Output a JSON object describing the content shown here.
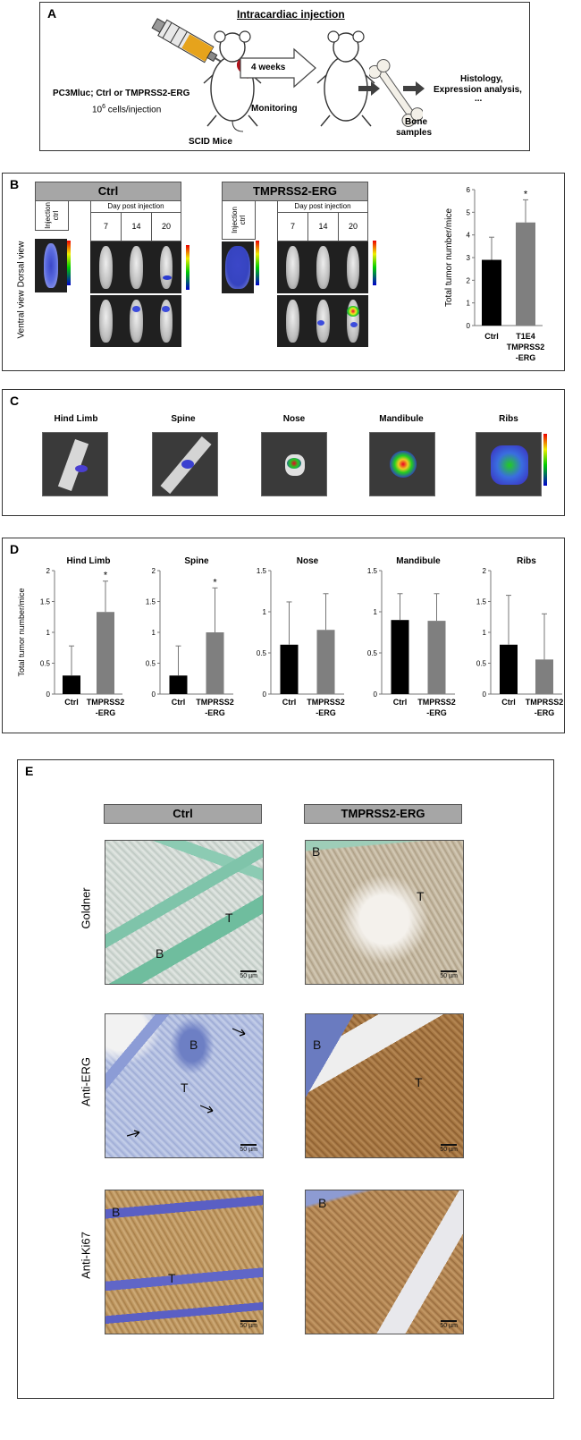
{
  "panelA": {
    "label": "A",
    "title": "Intracardiac injection",
    "cells_line": "PC3Mluc; Ctrl or TMPRSS2-ERG",
    "dose_prefix": "10",
    "dose_sup": "6",
    "dose_suffix": " cells/injection",
    "mice_label": "SCID Mice",
    "weeks_label": "4 weeks",
    "monitoring_label": "Monitoring",
    "bone_label_1": "Bone",
    "bone_label_2": "samples",
    "analysis_1": "Histology,",
    "analysis_2": "Expression analysis,",
    "analysis_3": "..."
  },
  "panelB": {
    "label": "B",
    "ctrl_header": "Ctrl",
    "erg_header": "TMPRSS2-ERG",
    "injection_ctrl": "Injection ctrl",
    "day_post": "Day post injection",
    "days": [
      "7",
      "14",
      "20"
    ],
    "dorsal": "Dorsal view",
    "ventral": "Ventral view"
  },
  "panelC": {
    "label": "C",
    "sites": [
      "Hind Limb",
      "Spine",
      "Nose",
      "Mandibule",
      "Ribs"
    ]
  },
  "panelD": {
    "label": "D"
  },
  "panelE": {
    "label": "E",
    "ctrl_header": "Ctrl",
    "erg_header": "TMPRSS2-ERG",
    "rows": [
      "Goldner",
      "Anti-ERG",
      "Anti-Ki67"
    ],
    "scale": "50 µm",
    "labels": {
      "goldner_ctrl_T": "T",
      "goldner_ctrl_B": "B",
      "goldner_erg_B": "B",
      "goldner_erg_T": "T",
      "erg_ctrl_B": "B",
      "erg_ctrl_T": "T",
      "erg_erg_B": "B",
      "erg_erg_T": "T",
      "ki67_ctrl_B": "B",
      "ki67_ctrl_T": "T",
      "ki67_erg_B": "B"
    }
  },
  "chart_data": [
    {
      "type": "bar",
      "panel": "B",
      "categories": [
        "Ctrl",
        "T1E4 TMPRSS2-ERG"
      ],
      "category_labels": [
        [
          "Ctrl"
        ],
        [
          "T1E4",
          "TMPRSS2",
          "-ERG"
        ]
      ],
      "values": [
        2.9,
        4.55
      ],
      "errors": [
        1.0,
        1.0
      ],
      "significance": [
        "",
        "*"
      ],
      "colors": [
        "#000000",
        "#7f7f7f"
      ],
      "ylabel": "Total tumor number/mice",
      "ylim": [
        0,
        6
      ],
      "yticks": [
        "0",
        "1",
        "2",
        "3",
        "4",
        "5",
        "6"
      ]
    },
    {
      "type": "bar",
      "panel": "D",
      "title": "Hind Limb",
      "categories": [
        "Ctrl",
        "TMPRSS2-ERG"
      ],
      "category_labels": [
        [
          "Ctrl"
        ],
        [
          "TMPRSS2",
          "-ERG"
        ]
      ],
      "values": [
        0.3,
        1.33
      ],
      "errors": [
        0.48,
        0.5
      ],
      "significance": [
        "",
        "*"
      ],
      "colors": [
        "#000000",
        "#7f7f7f"
      ],
      "ylabel": "Total tumor number/mice",
      "ylim": [
        0,
        2
      ],
      "yticks": [
        "0",
        "0.5",
        "1",
        "1.5",
        "2"
      ]
    },
    {
      "type": "bar",
      "panel": "D",
      "title": "Spine",
      "categories": [
        "Ctrl",
        "TMPRSS2-ERG"
      ],
      "category_labels": [
        [
          "Ctrl"
        ],
        [
          "TMPRSS2",
          "-ERG"
        ]
      ],
      "values": [
        0.3,
        1.0
      ],
      "errors": [
        0.48,
        0.72
      ],
      "significance": [
        "",
        "*"
      ],
      "colors": [
        "#000000",
        "#7f7f7f"
      ],
      "ylim": [
        0,
        2
      ],
      "yticks": [
        "0",
        "0.5",
        "1",
        "1.5",
        "2"
      ]
    },
    {
      "type": "bar",
      "panel": "D",
      "title": "Nose",
      "categories": [
        "Ctrl",
        "TMPRSS2-ERG"
      ],
      "category_labels": [
        [
          "Ctrl"
        ],
        [
          "TMPRSS2",
          "-ERG"
        ]
      ],
      "values": [
        0.6,
        0.78
      ],
      "errors": [
        0.52,
        0.44
      ],
      "significance": [
        "",
        ""
      ],
      "colors": [
        "#000000",
        "#7f7f7f"
      ],
      "ylim": [
        0,
        1.5
      ],
      "yticks": [
        "0",
        "0.5",
        "1",
        "1.5"
      ]
    },
    {
      "type": "bar",
      "panel": "D",
      "title": "Mandibule",
      "categories": [
        "Ctrl",
        "TMPRSS2-ERG"
      ],
      "category_labels": [
        [
          "Ctrl"
        ],
        [
          "TMPRSS2",
          "-ERG"
        ]
      ],
      "values": [
        0.9,
        0.89
      ],
      "errors": [
        0.32,
        0.33
      ],
      "significance": [
        "",
        ""
      ],
      "colors": [
        "#000000",
        "#7f7f7f"
      ],
      "ylim": [
        0,
        1.5
      ],
      "yticks": [
        "0",
        "0.5",
        "1",
        "1.5"
      ]
    },
    {
      "type": "bar",
      "panel": "D",
      "title": "Ribs",
      "categories": [
        "Ctrl",
        "TMPRSS2-ERG"
      ],
      "category_labels": [
        [
          "Ctrl"
        ],
        [
          "TMPRSS2",
          "-ERG"
        ]
      ],
      "values": [
        0.8,
        0.56
      ],
      "errors": [
        0.8,
        0.74
      ],
      "significance": [
        "",
        ""
      ],
      "colors": [
        "#000000",
        "#7f7f7f"
      ],
      "ylim": [
        0,
        2
      ],
      "yticks": [
        "0",
        "0.5",
        "1",
        "1.5",
        "2"
      ]
    }
  ]
}
